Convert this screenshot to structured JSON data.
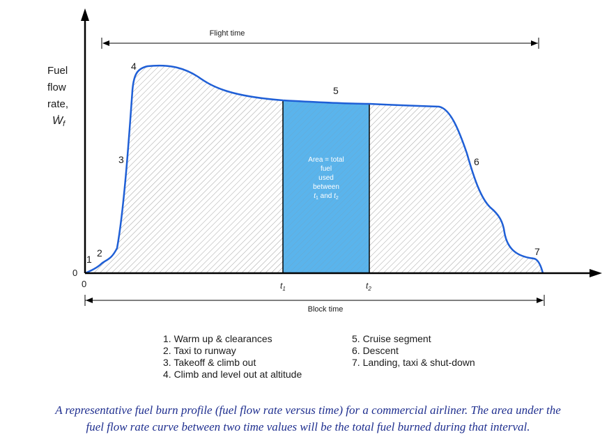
{
  "diagram": {
    "y_axis_label": [
      "Fuel",
      "flow",
      "rate,"
    ],
    "y_axis_symbol": "Ẇ",
    "y_axis_symbol_sub": "f",
    "origin_x": "0",
    "origin_y": "0",
    "flight_time_label": "Flight time",
    "block_time_label": "Block time",
    "t1_label": "t",
    "t1_sub": "1",
    "t2_label": "t",
    "t2_sub": "2",
    "area_text": [
      "Area = total",
      "fuel",
      "used",
      "between"
    ],
    "area_t1": "t",
    "area_t1_sub": "1",
    "area_and": " and ",
    "area_t2": "t",
    "area_t2_sub": "2",
    "phase_numbers": [
      "1",
      "2",
      "3",
      "4",
      "5",
      "6",
      "7"
    ],
    "curve_color": "#1f5fd6",
    "area_fill": "#5ab4ec"
  },
  "legend": {
    "left": [
      "1. Warm up & clearances",
      "2. Taxi to runway",
      "3. Takeoff & climb out",
      "4. Climb and level out at altitude"
    ],
    "right": [
      "5. Cruise segment",
      "6. Descent",
      "7. Landing, taxi & shut-down"
    ]
  },
  "caption": {
    "line1": "A representative fuel burn profile (fuel flow rate versus time) for a commercial airliner. The area under the",
    "line2": "fuel flow rate curve between two time values will be the total fuel burned during that interval."
  }
}
